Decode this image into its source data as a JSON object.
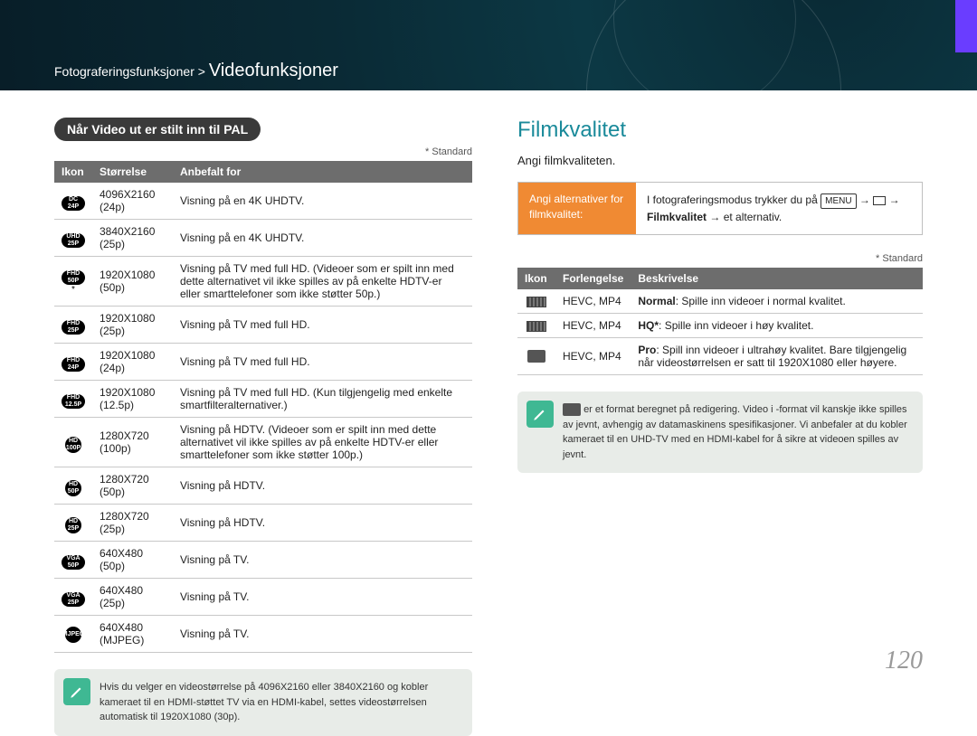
{
  "breadcrumb": {
    "parent": "Fotograferingsfunksjoner",
    "sep": ">",
    "current": "Videofunksjoner"
  },
  "left": {
    "pill": "Når Video ut er stilt inn til PAL",
    "standard": "* Standard",
    "headers": {
      "icon": "Ikon",
      "size": "Størrelse",
      "rec": "Anbefalt for"
    },
    "rows": [
      {
        "badge": "DC\n24P",
        "shape": "pill",
        "star": false,
        "size": "4096X2160 (24p)",
        "rec": "Visning på en 4K UHDTV."
      },
      {
        "badge": "UHD\n25P",
        "shape": "pill",
        "star": false,
        "size": "3840X2160 (25p)",
        "rec": "Visning på en 4K UHDTV."
      },
      {
        "badge": "FHD\n50P",
        "shape": "pill",
        "star": true,
        "size": "1920X1080 (50p)",
        "rec": "Visning på TV med full HD. (Videoer som er spilt inn med dette alternativet vil ikke spilles av på enkelte HDTV-er eller smarttelefoner som ikke støtter 50p.)"
      },
      {
        "badge": "FHD\n25P",
        "shape": "pill",
        "star": false,
        "size": "1920X1080 (25p)",
        "rec": "Visning på TV med full HD."
      },
      {
        "badge": "FHD\n24P",
        "shape": "pill",
        "star": false,
        "size": "1920X1080 (24p)",
        "rec": "Visning på TV med full HD."
      },
      {
        "badge": "FHD\n12.5P",
        "shape": "pill",
        "star": false,
        "size": "1920X1080 (12.5p)",
        "rec": "Visning på TV med full HD. (Kun tilgjengelig med enkelte smartfilteralternativer.)"
      },
      {
        "badge": "HD\n100P",
        "shape": "round",
        "star": false,
        "size": "1280X720 (100p)",
        "rec": "Visning på HDTV. (Videoer som er spilt inn med dette alternativet vil ikke spilles av på enkelte HDTV-er eller smarttelefoner som ikke støtter 100p.)"
      },
      {
        "badge": "HD\n50P",
        "shape": "round",
        "star": false,
        "size": "1280X720 (50p)",
        "rec": "Visning på HDTV."
      },
      {
        "badge": "HD\n25P",
        "shape": "round",
        "star": false,
        "size": "1280X720 (25p)",
        "rec": "Visning på HDTV."
      },
      {
        "badge": "VGA\n50P",
        "shape": "pill",
        "star": false,
        "size": "640X480 (50p)",
        "rec": "Visning på TV."
      },
      {
        "badge": "VGA\n25P",
        "shape": "pill",
        "star": false,
        "size": "640X480 (25p)",
        "rec": "Visning på TV."
      },
      {
        "badge": "MJPEG",
        "shape": "round",
        "star": false,
        "size": "640X480 (MJPEG)",
        "rec": "Visning på TV."
      }
    ],
    "note": "Hvis du velger en videostørrelse på 4096X2160 eller 3840X2160 og kobler kameraet til en HDMI-støttet TV via en HDMI-kabel, settes videostørrelsen automatisk til 1920X1080 (30p)."
  },
  "right": {
    "title": "Filmkvalitet",
    "desc": "Angi filmkvaliteten.",
    "optbox": {
      "left": "Angi alternativer for filmkvalitet:",
      "right_prefix": "I fotograferingsmodus trykker du på",
      "menu": "MENU",
      "arrow": "→",
      "filmkvalitet": "Filmkvalitet",
      "suffix": "et alternativ."
    },
    "standard": "* Standard",
    "headers": {
      "icon": "Ikon",
      "ext": "Forlengelse",
      "desc": "Beskrivelse"
    },
    "rows": [
      {
        "icon": "strip",
        "ext": "HEVC, MP4",
        "bold": "Normal",
        "desc": ": Spille inn videoer i normal kvalitet."
      },
      {
        "icon": "strip",
        "ext": "HEVC, MP4",
        "bold": "HQ*",
        "desc": ": Spille inn videoer i høy kvalitet."
      },
      {
        "icon": "pro",
        "ext": "HEVC, MP4",
        "bold": "Pro",
        "desc": ": Spill inn videoer i ultrahøy kvalitet. Bare tilgjengelig når videostørrelsen er satt til 1920X1080 eller høyere."
      }
    ],
    "note": "er et format beregnet på redigering. Video i -format vil kanskje ikke spilles av jevnt, avhengig av datamaskinens spesifikasjoner. Vi anbefaler at du kobler kameraet til en UHD-TV med en HDMI-kabel for å sikre at videoen spilles av jevnt."
  },
  "page_num": "120"
}
